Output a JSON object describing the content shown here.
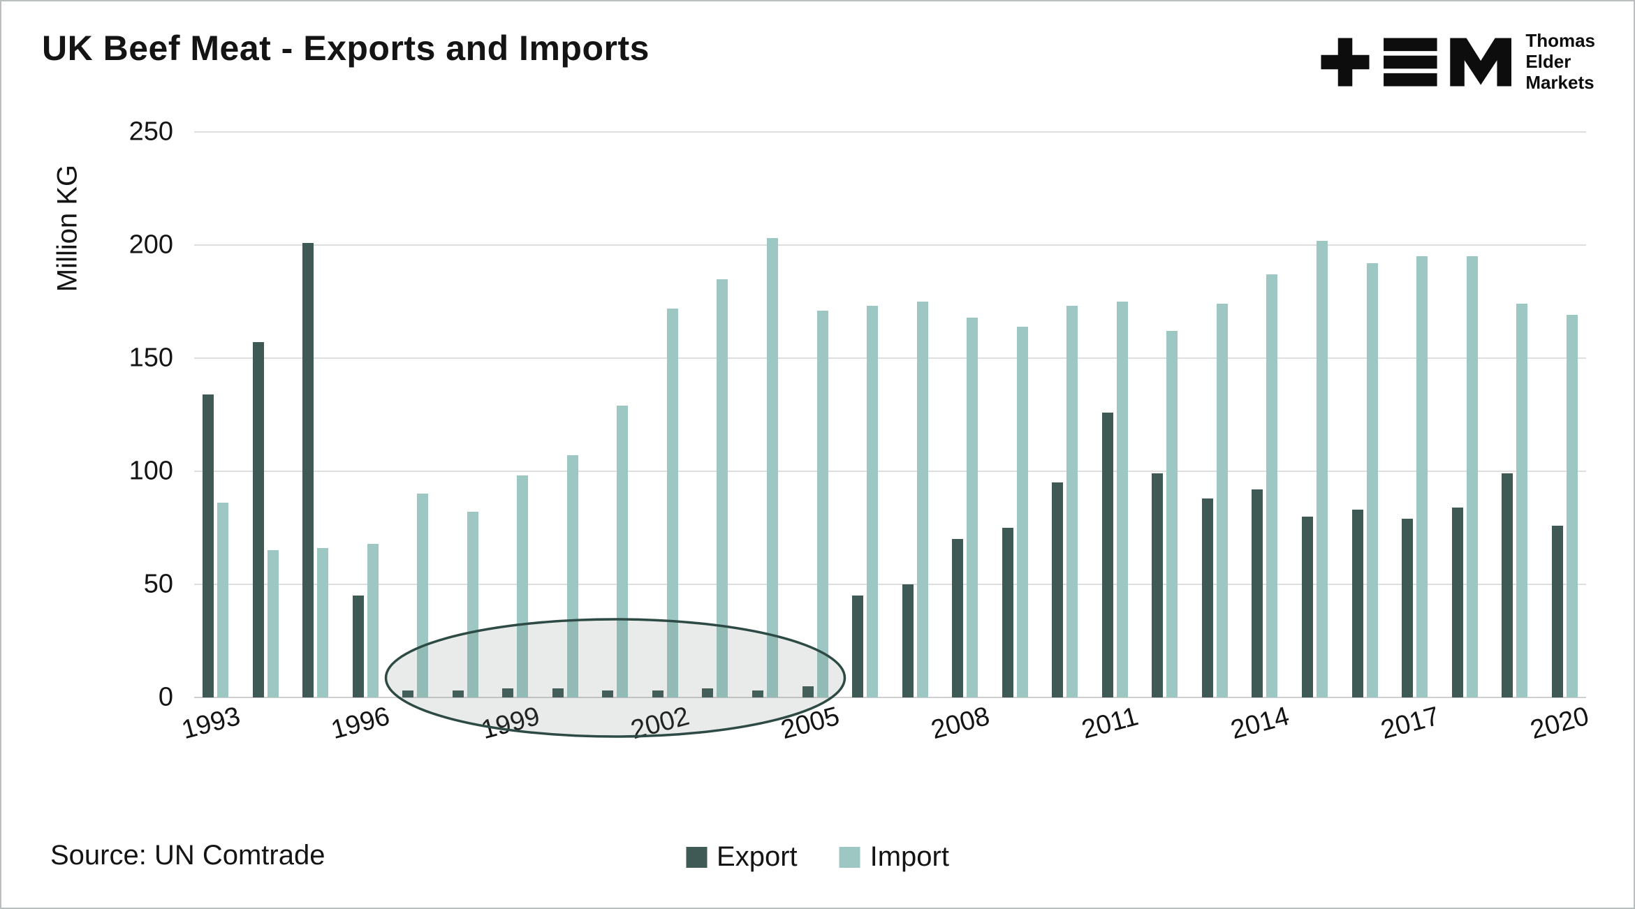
{
  "title": "UK Beef Meat - Exports and Imports",
  "logo": {
    "lines": [
      "Thomas",
      "Elder",
      "Markets"
    ]
  },
  "source": "Source: UN Comtrade",
  "legend": {
    "export_label": "Export",
    "import_label": "Import"
  },
  "colors": {
    "export": "#3f5a55",
    "import": "#9cc7c2",
    "annotation_stroke": "#2e4a45",
    "annotation_fill": "rgba(100,120,116,0.15)"
  },
  "chart_data": {
    "type": "bar",
    "title": "UK Beef Meat - Exports and Imports",
    "xlabel": "",
    "ylabel": "Million KG",
    "ylim": [
      0,
      250
    ],
    "yticks": [
      0,
      50,
      100,
      150,
      200,
      250
    ],
    "grid": "horizontal",
    "legend_position": "bottom-center",
    "x": [
      1993,
      1994,
      1995,
      1996,
      1997,
      1998,
      1999,
      2000,
      2001,
      2002,
      2003,
      2004,
      2005,
      2006,
      2007,
      2008,
      2009,
      2010,
      2011,
      2012,
      2013,
      2014,
      2015,
      2016,
      2017,
      2018,
      2019,
      2020
    ],
    "x_tick_labels": [
      "1993",
      "1996",
      "1999",
      "2002",
      "2005",
      "2008",
      "2011",
      "2014",
      "2017",
      "2020"
    ],
    "series": [
      {
        "name": "Export",
        "values": [
          134,
          157,
          201,
          45,
          3,
          3,
          4,
          4,
          3,
          3,
          4,
          3,
          5,
          45,
          50,
          70,
          75,
          95,
          126,
          99,
          88,
          92,
          80,
          83,
          79,
          84,
          99,
          76
        ]
      },
      {
        "name": "Import",
        "values": [
          86,
          65,
          66,
          68,
          90,
          82,
          98,
          107,
          129,
          172,
          185,
          203,
          171,
          173,
          175,
          168,
          164,
          173,
          175,
          162,
          174,
          187,
          202,
          192,
          195,
          195,
          174,
          169
        ]
      }
    ],
    "annotation": {
      "shape": "ellipse",
      "year_start": 1997,
      "year_end": 2005,
      "meaning": "highlights near-zero export years"
    }
  }
}
